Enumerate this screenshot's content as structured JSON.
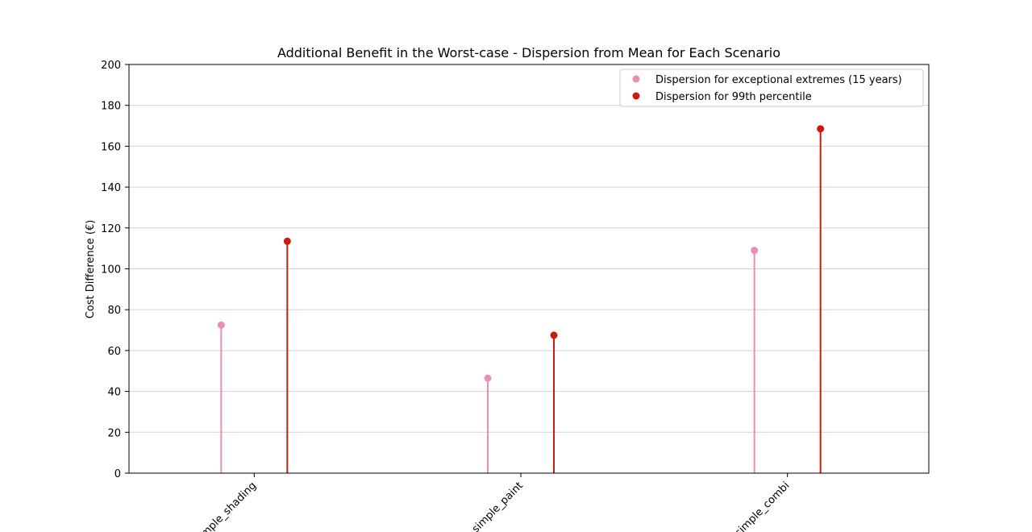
{
  "chart_data": {
    "type": "lollipop",
    "title": "Additional Benefit in the Worst-case - Dispersion from Mean for Each Scenario",
    "xlabel": "",
    "ylabel": "Cost Difference (€)",
    "ylim": [
      0,
      200
    ],
    "yticks": [
      0,
      20,
      40,
      60,
      80,
      100,
      120,
      140,
      160,
      180,
      200
    ],
    "categories": [
      "simple_shading",
      "simple_paint",
      "simple_combi"
    ],
    "series": [
      {
        "name": "Dispersion for exceptional extremes (15 years)",
        "color": "#e88fb8",
        "values": [
          72.5,
          46.5,
          109
        ]
      },
      {
        "name": "Dispersion for 99th percentile",
        "color": "#cc1a0f",
        "values": [
          113.5,
          67.5,
          168.5
        ]
      }
    ],
    "grid": "horizontal",
    "legend_position": "top-right"
  }
}
